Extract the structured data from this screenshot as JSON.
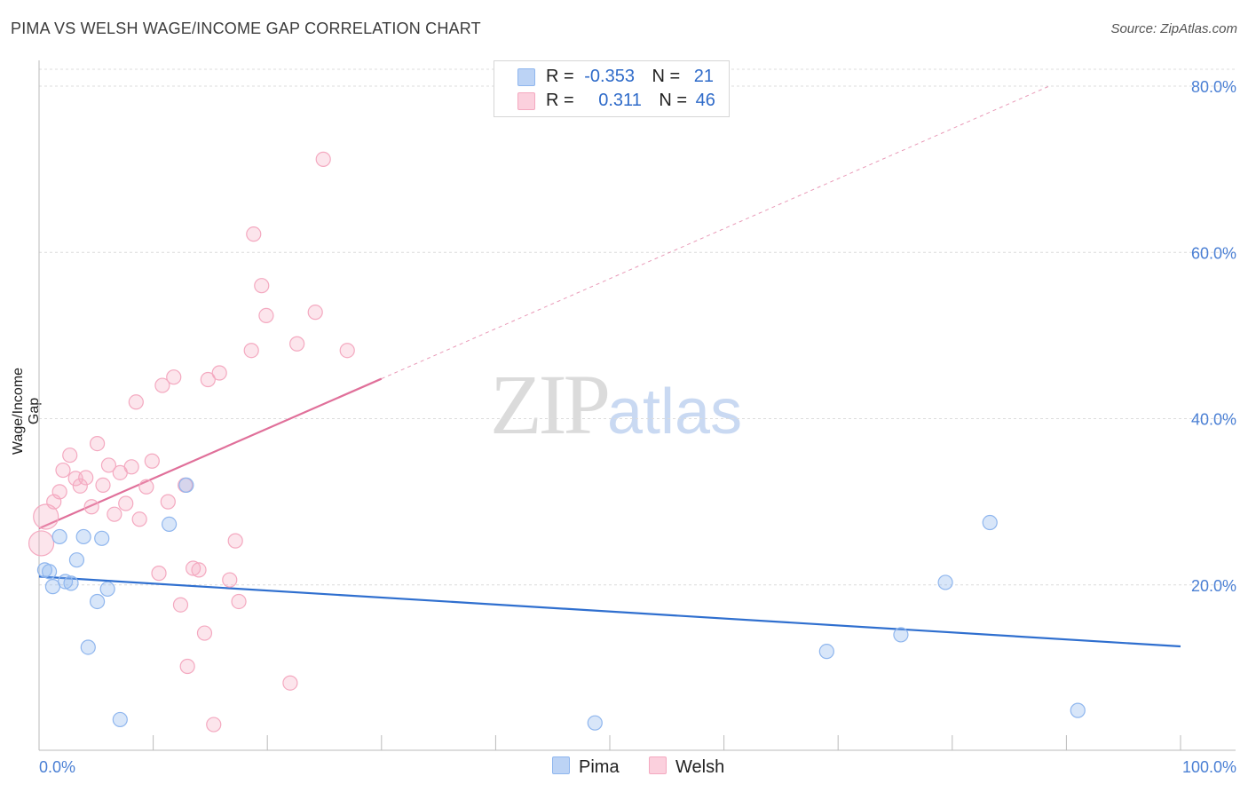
{
  "chart_data": {
    "type": "scatter",
    "title": "PIMA VS WELSH WAGE/INCOME GAP CORRELATION CHART",
    "source": "Source: ZipAtlas.com",
    "xlabel": "",
    "ylabel": "Wage/Income Gap",
    "xlim": [
      0,
      100
    ],
    "ylim": [
      0,
      83
    ],
    "x_tick_labels": [
      "0.0%",
      "100.0%"
    ],
    "y_ticks": [
      20,
      40,
      60,
      80
    ],
    "y_tick_labels": [
      "20.0%",
      "40.0%",
      "60.0%",
      "80.0%"
    ],
    "watermark": {
      "zip": "ZIP",
      "atlas": "atlas"
    },
    "legend": {
      "rows": [
        {
          "r_label": "R =",
          "r_value": "-0.353",
          "n_label": "N =",
          "n_value": "21"
        },
        {
          "r_label": "R =",
          "r_value": "0.311",
          "n_label": "N =",
          "n_value": "46"
        }
      ]
    },
    "series": [
      {
        "name": "Pima",
        "color": "#8fb6ee",
        "line_color": "#2f6fcf",
        "trend": {
          "x": [
            0,
            100
          ],
          "y": [
            21.0,
            12.6
          ],
          "dashed_to": null
        },
        "points": [
          {
            "x": 0.5,
            "y": 21.8
          },
          {
            "x": 0.9,
            "y": 21.6
          },
          {
            "x": 1.2,
            "y": 19.8
          },
          {
            "x": 1.8,
            "y": 25.8
          },
          {
            "x": 2.3,
            "y": 20.4
          },
          {
            "x": 2.8,
            "y": 20.2
          },
          {
            "x": 3.3,
            "y": 23.0
          },
          {
            "x": 3.9,
            "y": 25.8
          },
          {
            "x": 5.1,
            "y": 18.0
          },
          {
            "x": 5.5,
            "y": 25.6
          },
          {
            "x": 6.0,
            "y": 19.5
          },
          {
            "x": 4.3,
            "y": 12.5
          },
          {
            "x": 7.1,
            "y": 3.8
          },
          {
            "x": 11.4,
            "y": 27.3
          },
          {
            "x": 12.9,
            "y": 32.0
          },
          {
            "x": 48.7,
            "y": 3.4
          },
          {
            "x": 69.0,
            "y": 12.0
          },
          {
            "x": 75.5,
            "y": 14.0
          },
          {
            "x": 79.4,
            "y": 20.3
          },
          {
            "x": 83.3,
            "y": 27.5
          },
          {
            "x": 91.0,
            "y": 4.9
          }
        ]
      },
      {
        "name": "Welsh",
        "color": "#f4a9c0",
        "line_color": "#e0709a",
        "trend": {
          "x": [
            0,
            30
          ],
          "y": [
            26.8,
            44.8
          ],
          "dashed_to": [
            88.5,
            80.0
          ]
        },
        "points": [
          {
            "x": 0.2,
            "y": 25.0
          },
          {
            "x": 0.6,
            "y": 28.2
          },
          {
            "x": 1.3,
            "y": 30.0
          },
          {
            "x": 1.8,
            "y": 31.2
          },
          {
            "x": 2.1,
            "y": 33.8
          },
          {
            "x": 2.7,
            "y": 35.6
          },
          {
            "x": 3.2,
            "y": 32.8
          },
          {
            "x": 3.6,
            "y": 31.9
          },
          {
            "x": 4.1,
            "y": 32.9
          },
          {
            "x": 4.6,
            "y": 29.4
          },
          {
            "x": 5.1,
            "y": 37.0
          },
          {
            "x": 5.6,
            "y": 32.0
          },
          {
            "x": 6.1,
            "y": 34.4
          },
          {
            "x": 6.6,
            "y": 28.5
          },
          {
            "x": 7.1,
            "y": 33.5
          },
          {
            "x": 7.6,
            "y": 29.8
          },
          {
            "x": 8.1,
            "y": 34.2
          },
          {
            "x": 8.5,
            "y": 42.0
          },
          {
            "x": 8.8,
            "y": 27.9
          },
          {
            "x": 9.4,
            "y": 31.8
          },
          {
            "x": 9.9,
            "y": 34.9
          },
          {
            "x": 10.5,
            "y": 21.4
          },
          {
            "x": 10.8,
            "y": 44.0
          },
          {
            "x": 11.3,
            "y": 30.0
          },
          {
            "x": 11.8,
            "y": 45.0
          },
          {
            "x": 12.4,
            "y": 17.6
          },
          {
            "x": 12.8,
            "y": 32.0
          },
          {
            "x": 13.0,
            "y": 10.2
          },
          {
            "x": 13.5,
            "y": 22.0
          },
          {
            "x": 14.0,
            "y": 21.8
          },
          {
            "x": 14.5,
            "y": 14.2
          },
          {
            "x": 14.8,
            "y": 44.7
          },
          {
            "x": 15.3,
            "y": 3.2
          },
          {
            "x": 15.8,
            "y": 45.5
          },
          {
            "x": 16.7,
            "y": 20.6
          },
          {
            "x": 17.2,
            "y": 25.3
          },
          {
            "x": 17.5,
            "y": 18.0
          },
          {
            "x": 18.6,
            "y": 48.2
          },
          {
            "x": 18.8,
            "y": 62.2
          },
          {
            "x": 19.5,
            "y": 56.0
          },
          {
            "x": 19.9,
            "y": 52.4
          },
          {
            "x": 22.0,
            "y": 8.2
          },
          {
            "x": 22.6,
            "y": 49.0
          },
          {
            "x": 24.2,
            "y": 52.8
          },
          {
            "x": 24.9,
            "y": 71.2
          },
          {
            "x": 27.0,
            "y": 48.2
          }
        ]
      }
    ]
  }
}
